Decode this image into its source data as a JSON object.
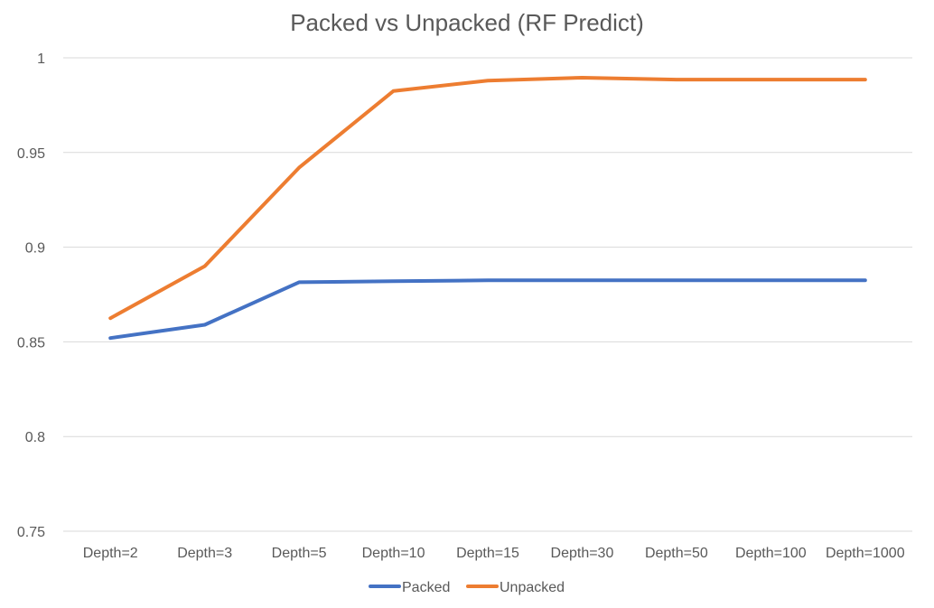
{
  "chart_data": {
    "type": "line",
    "title": "Packed vs Unpacked (RF Predict)",
    "xlabel": "",
    "ylabel": "",
    "categories": [
      "Depth=2",
      "Depth=3",
      "Depth=5",
      "Depth=10",
      "Depth=15",
      "Depth=30",
      "Depth=50",
      "Depth=100",
      "Depth=1000"
    ],
    "series": [
      {
        "name": "Packed",
        "color": "#4472c4",
        "values": [
          0.852,
          0.859,
          0.8815,
          0.882,
          0.8825,
          0.8825,
          0.8825,
          0.8825,
          0.8825
        ]
      },
      {
        "name": "Unpacked",
        "color": "#ed7d31",
        "values": [
          0.8625,
          0.89,
          0.942,
          0.9825,
          0.988,
          0.9895,
          0.9885,
          0.9885,
          0.9885
        ]
      }
    ],
    "ylim": [
      0.75,
      1.0
    ],
    "yticks": [
      0.75,
      0.8,
      0.85,
      0.9,
      0.95,
      1.0
    ],
    "ytick_labels": [
      "0.75",
      "0.8",
      "0.85",
      "0.9",
      "0.95",
      "1"
    ],
    "grid": true,
    "legend_position": "bottom",
    "gridline_color": "#d9d9d9",
    "text_color": "#595959"
  }
}
